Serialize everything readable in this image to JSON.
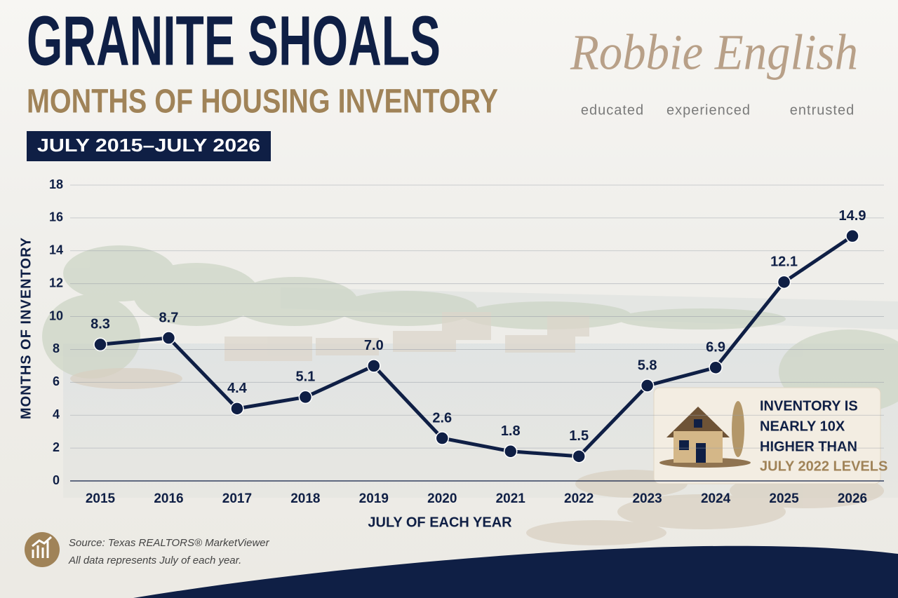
{
  "brand": {
    "name": "Robbie English",
    "tagline": [
      "educated",
      "experienced",
      "entrusted"
    ]
  },
  "chart_data": {
    "type": "line",
    "title": "GRANITE SHOALS",
    "subtitle": "MONTHS OF HOUSING INVENTORY",
    "date_range": "JULY 2015–JULY 2026",
    "y_label": "MONTHS OF INVENTORY",
    "x_label": "JULY OF EACH YEAR",
    "categories": [
      "2015",
      "2016",
      "2017",
      "2018",
      "2019",
      "2020",
      "2021",
      "2022",
      "2023",
      "2024",
      "2025",
      "2026"
    ],
    "values": [
      8.3,
      8.7,
      4.4,
      5.1,
      7.0,
      2.6,
      1.8,
      1.5,
      5.8,
      6.9,
      12.1,
      14.9
    ],
    "value_labels": [
      "8.3",
      "8.7",
      "4.4",
      "5.1",
      "7.0",
      "2.6",
      "1.8",
      "1.5",
      "5.8",
      "6.9",
      "12.1",
      "14.9"
    ],
    "color": "#0f1f45",
    "ylim": [
      0,
      18
    ],
    "yticks": [
      0,
      2,
      4,
      6,
      8,
      10,
      12,
      14,
      16,
      18
    ],
    "grid": true,
    "callout": [
      "INVENTORY IS",
      "NEARLY 10X",
      "HIGHER THAN",
      "JULY 2022 LEVELS"
    ],
    "source": [
      "Source: Texas REALTORS® MarketViewer",
      "All data represents July of each year."
    ]
  }
}
